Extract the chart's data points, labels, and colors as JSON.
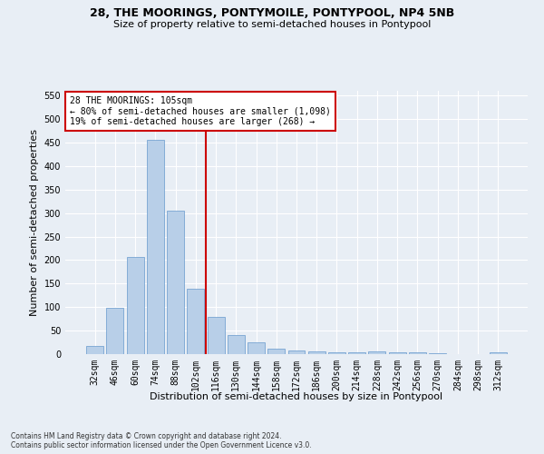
{
  "title": "28, THE MOORINGS, PONTYMOILE, PONTYPOOL, NP4 5NB",
  "subtitle": "Size of property relative to semi-detached houses in Pontypool",
  "xlabel": "Distribution of semi-detached houses by size in Pontypool",
  "ylabel": "Number of semi-detached properties",
  "categories": [
    "32sqm",
    "46sqm",
    "60sqm",
    "74sqm",
    "88sqm",
    "102sqm",
    "116sqm",
    "130sqm",
    "144sqm",
    "158sqm",
    "172sqm",
    "186sqm",
    "200sqm",
    "214sqm",
    "228sqm",
    "242sqm",
    "256sqm",
    "270sqm",
    "284sqm",
    "298sqm",
    "312sqm"
  ],
  "values": [
    17,
    98,
    206,
    455,
    306,
    140,
    79,
    40,
    25,
    11,
    8,
    6,
    3,
    3,
    5,
    4,
    3,
    1,
    0,
    0,
    3
  ],
  "bar_color": "#b8cfe8",
  "bar_edge_color": "#6699cc",
  "vline_x": 5.5,
  "vline_color": "#cc0000",
  "annotation_text": "28 THE MOORINGS: 105sqm\n← 80% of semi-detached houses are smaller (1,098)\n19% of semi-detached houses are larger (268) →",
  "annotation_box_color": "#ffffff",
  "annotation_box_edge": "#cc0000",
  "ylim": [
    0,
    560
  ],
  "yticks": [
    0,
    50,
    100,
    150,
    200,
    250,
    300,
    350,
    400,
    450,
    500,
    550
  ],
  "footer": "Contains HM Land Registry data © Crown copyright and database right 2024.\nContains public sector information licensed under the Open Government Licence v3.0.",
  "bg_color": "#e8eef5",
  "plot_bg_color": "#e8eef5",
  "title_fontsize": 9,
  "subtitle_fontsize": 8,
  "tick_fontsize": 7,
  "label_fontsize": 8,
  "annotation_fontsize": 7,
  "footer_fontsize": 5.5
}
